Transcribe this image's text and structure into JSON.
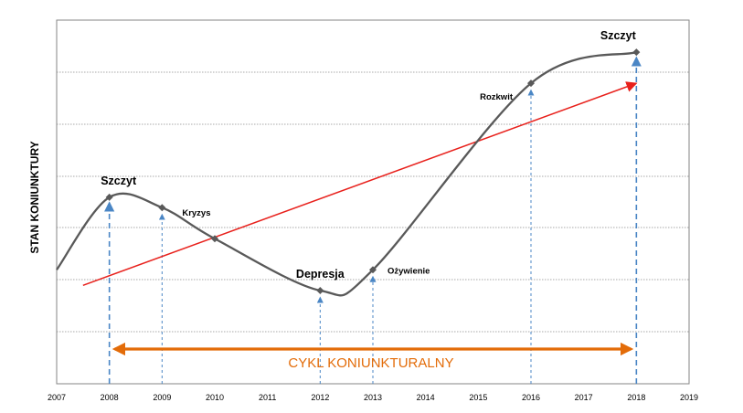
{
  "chart_data": {
    "type": "line",
    "ylabel": "STAN KONIUNKTURY",
    "x_ticks": [
      "2007",
      "2008",
      "2009",
      "2010",
      "2011",
      "2012",
      "2013",
      "2014",
      "2015",
      "2016",
      "2017",
      "2018",
      "2019"
    ],
    "xlim": [
      2007,
      2019
    ],
    "grid": "horizontal dotted",
    "key_points": [
      {
        "x": 2008,
        "y": 3.6,
        "label": "Szczyt"
      },
      {
        "x": 2009,
        "y": 3.4,
        "label": "Kryzys"
      },
      {
        "x": 2010,
        "y": 2.8,
        "label": ""
      },
      {
        "x": 2012,
        "y": 1.8,
        "label": "Depresja"
      },
      {
        "x": 2013,
        "y": 2.2,
        "label": "Ożywienie"
      },
      {
        "x": 2016,
        "y": 5.8,
        "label": "Rozkwit"
      },
      {
        "x": 2018,
        "y": 6.4,
        "label": "Szczyt"
      }
    ],
    "trend_line": {
      "x": [
        2007.5,
        2018
      ],
      "y": [
        1.9,
        5.8
      ],
      "color": "#e8211c"
    },
    "cycle_span": {
      "x": [
        2008,
        2018
      ],
      "label": "CYKL KONIUNKTURALNY",
      "color": "#e36c09"
    },
    "colors": {
      "curve": "#595959",
      "arrows": "#4a86c5",
      "trend": "#e8211c",
      "cycle": "#e36c09"
    }
  }
}
